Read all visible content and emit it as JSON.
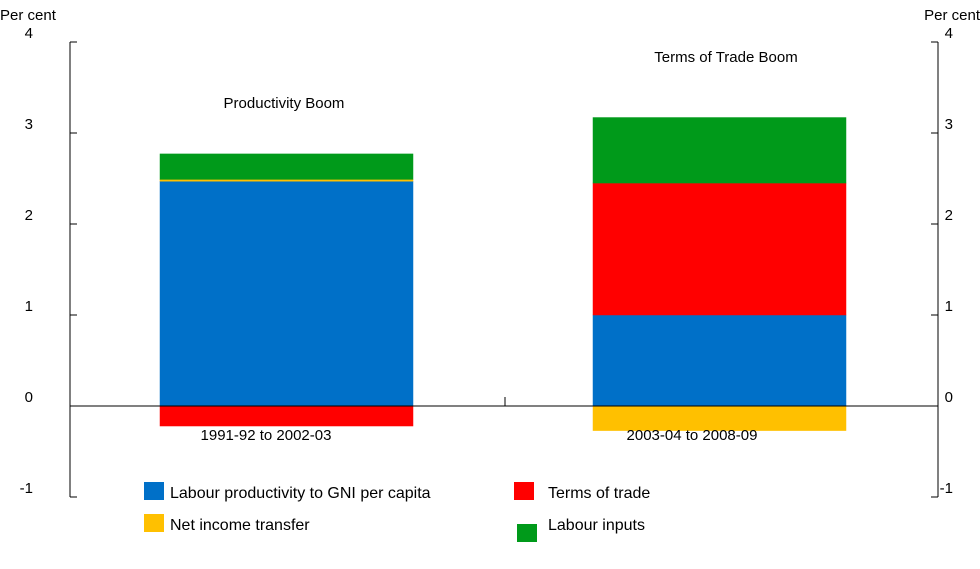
{
  "chart_data": {
    "type": "bar",
    "stacked": true,
    "y_unit_left": "Per cent",
    "y_unit_right": "Per cent",
    "ylim": [
      -1,
      4
    ],
    "yticks": [
      -1,
      0,
      1,
      2,
      3,
      4
    ],
    "ytick_labels": [
      "-1",
      "0",
      "1",
      "2",
      "3",
      "4"
    ],
    "categories": [
      "1991-92 to 2002-03",
      "2003-04 to 2008-09"
    ],
    "annotations": [
      "Productivity Boom",
      "Terms of Trade Boom"
    ],
    "series": [
      {
        "name": "Labour productivity to GNI per capita",
        "color": "#0070C8",
        "values": [
          2.47,
          1.0
        ]
      },
      {
        "name": "Terms of trade",
        "color": "#FF0000",
        "values": [
          -0.22,
          1.45
        ]
      },
      {
        "name": "Net income transfer",
        "color": "#FFC000",
        "values": [
          0.02,
          -0.27
        ]
      },
      {
        "name": "Labour inputs",
        "color": "#009A1A",
        "values": [
          0.28,
          0.72
        ]
      }
    ],
    "legend": [
      {
        "name": "Labour productivity to GNI per capita",
        "color": "#0070C8"
      },
      {
        "name": "Terms of trade",
        "color": "#FF0000"
      },
      {
        "name": "Net income transfer",
        "color": "#FFC000"
      },
      {
        "name": "Labour inputs",
        "color": "#009A1A"
      }
    ],
    "legend_placement": "bottom",
    "grid": false
  }
}
